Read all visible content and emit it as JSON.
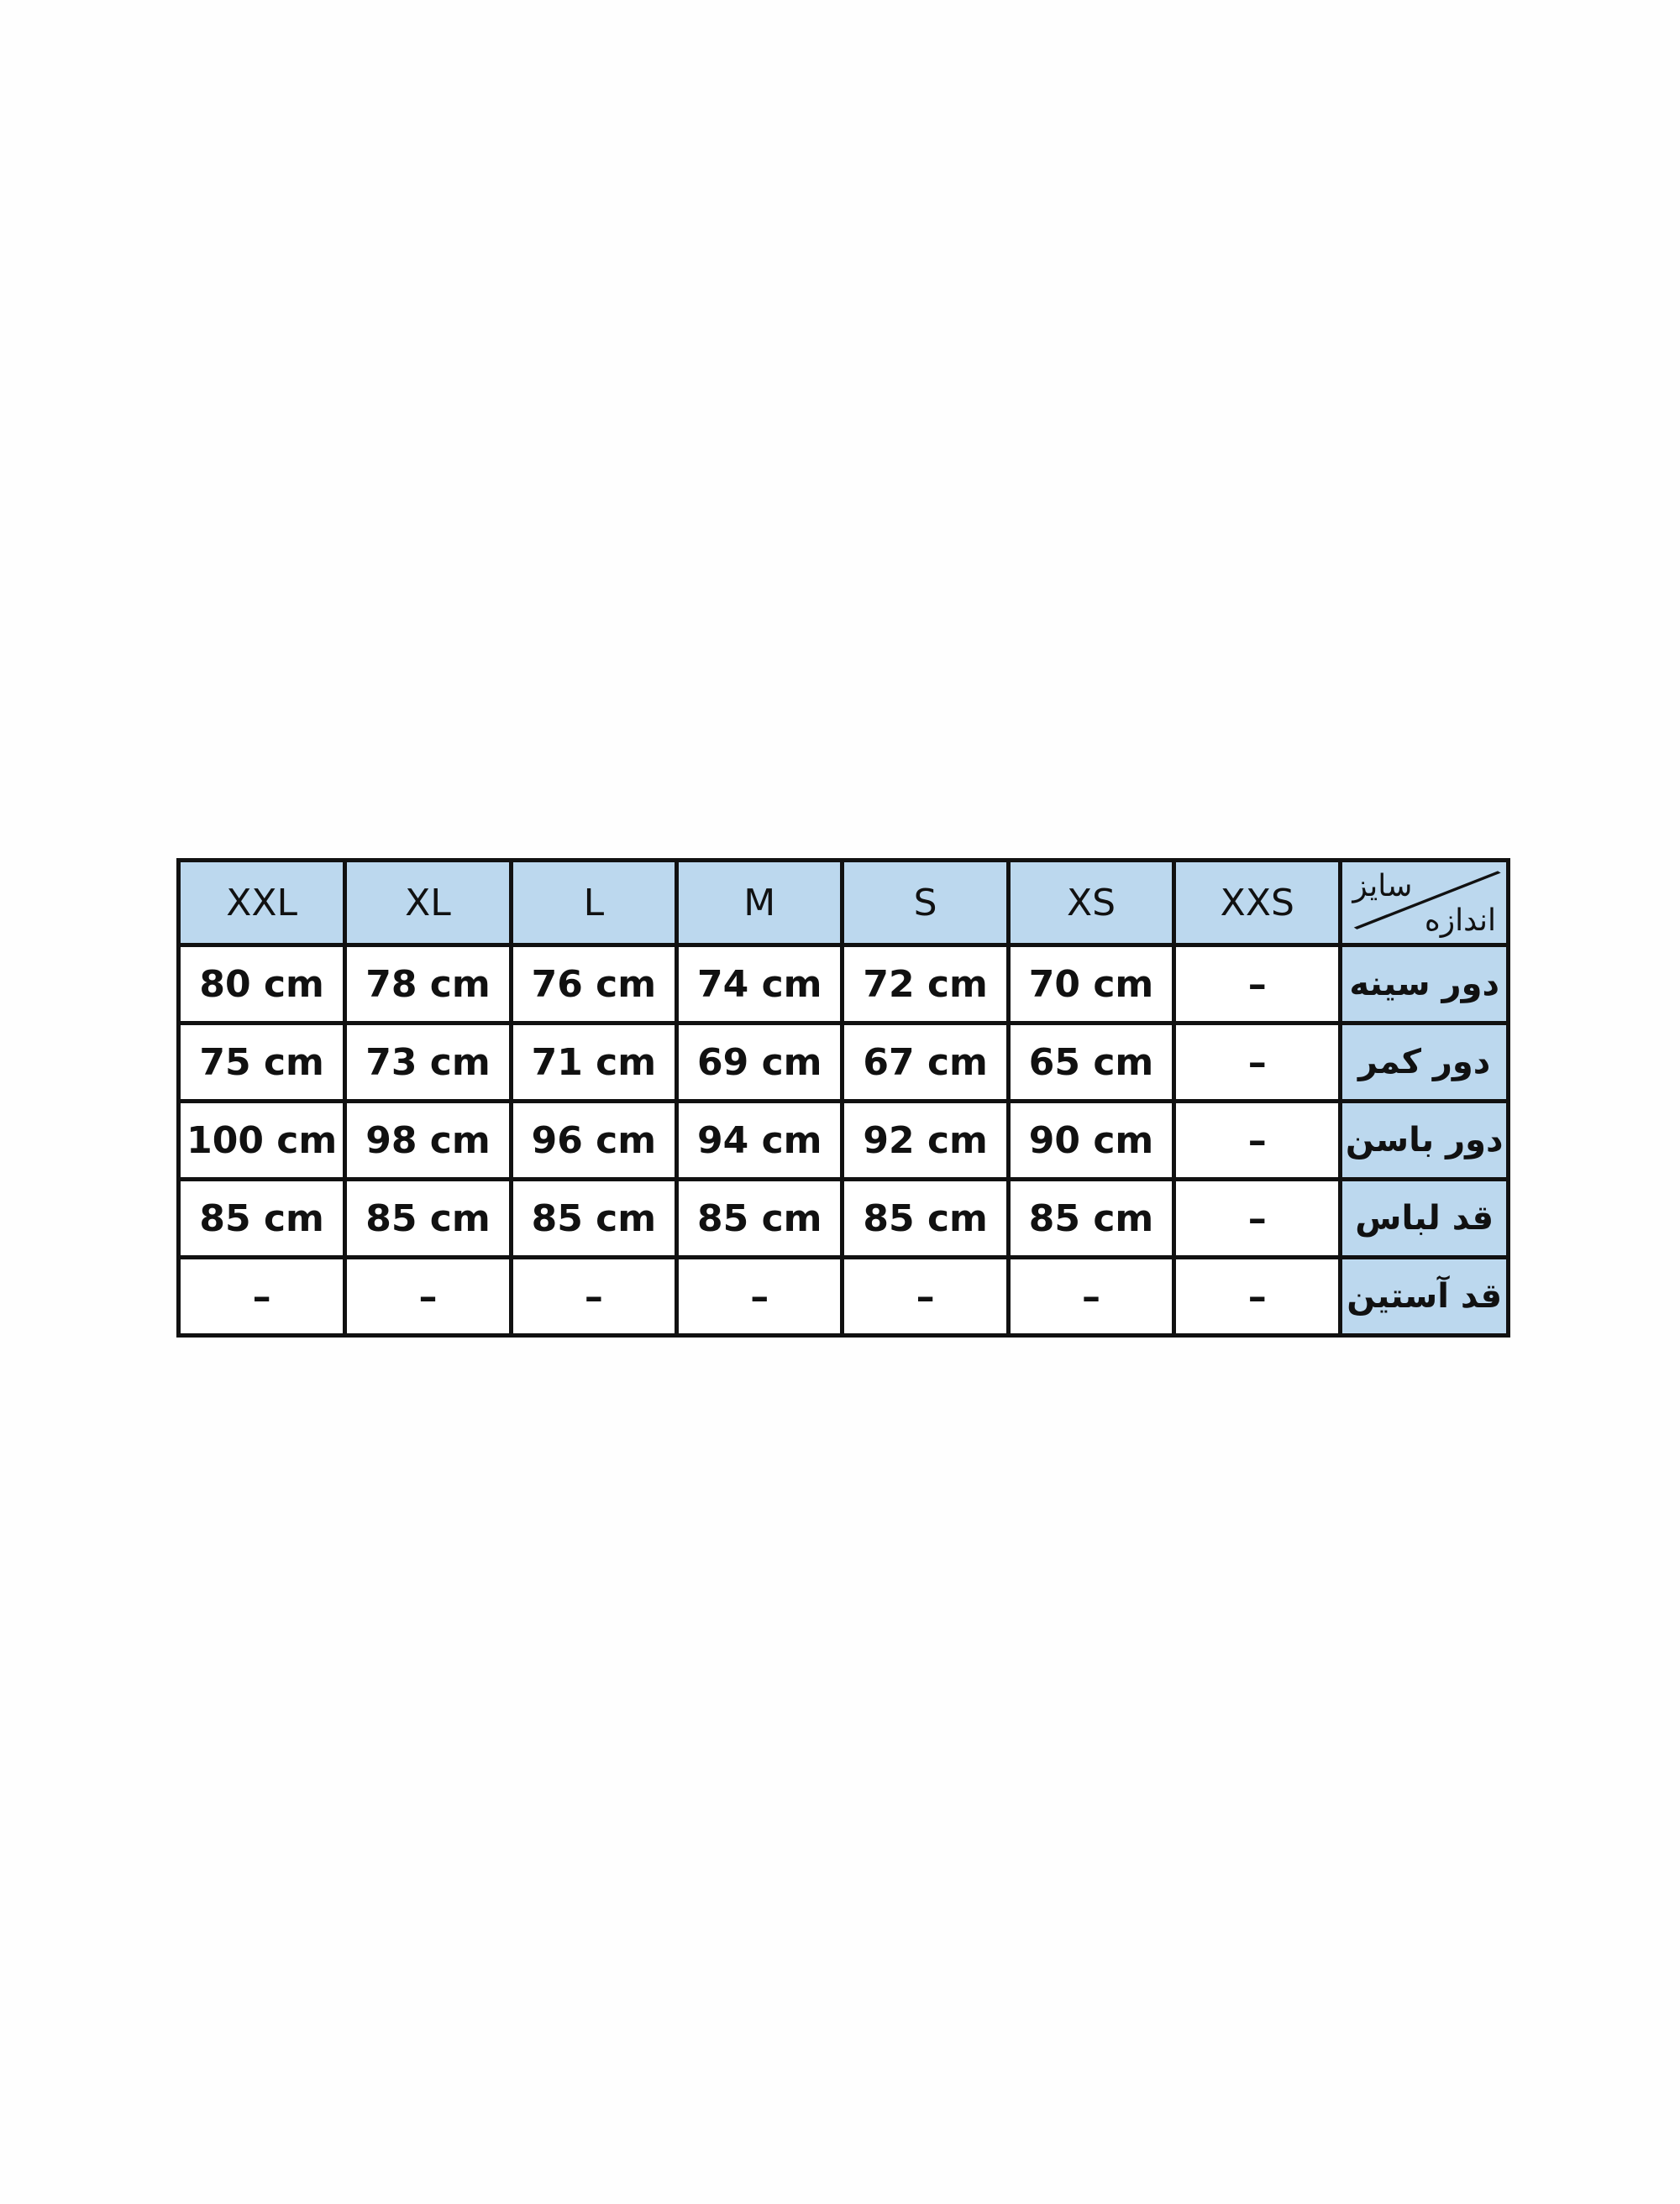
{
  "header": {
    "sizes": [
      "XXL",
      "XL",
      "L",
      "M",
      "S",
      "XS",
      "XXS"
    ],
    "corner_top": "سایز",
    "corner_bottom": "اندازه"
  },
  "rows": [
    {
      "label": "دور سینه",
      "values": [
        "80 cm",
        "78 cm",
        "76 cm",
        "74 cm",
        "72 cm",
        "70 cm",
        "–"
      ]
    },
    {
      "label": "دور کمر",
      "values": [
        "75 cm",
        "73 cm",
        "71 cm",
        "69 cm",
        "67 cm",
        "65 cm",
        "–"
      ]
    },
    {
      "label": "دور باسن",
      "values": [
        "100 cm",
        "98 cm",
        "96 cm",
        "94 cm",
        "92 cm",
        "90 cm",
        "–"
      ]
    },
    {
      "label": "قد لباس",
      "values": [
        "85 cm",
        "85 cm",
        "85 cm",
        "85 cm",
        "85 cm",
        "85 cm",
        "–"
      ]
    },
    {
      "label": "قد آستین",
      "values": [
        "–",
        "–",
        "–",
        "–",
        "–",
        "–",
        "–"
      ]
    }
  ],
  "colors": {
    "header_bg": "#bcd8ee",
    "border": "#111111"
  }
}
